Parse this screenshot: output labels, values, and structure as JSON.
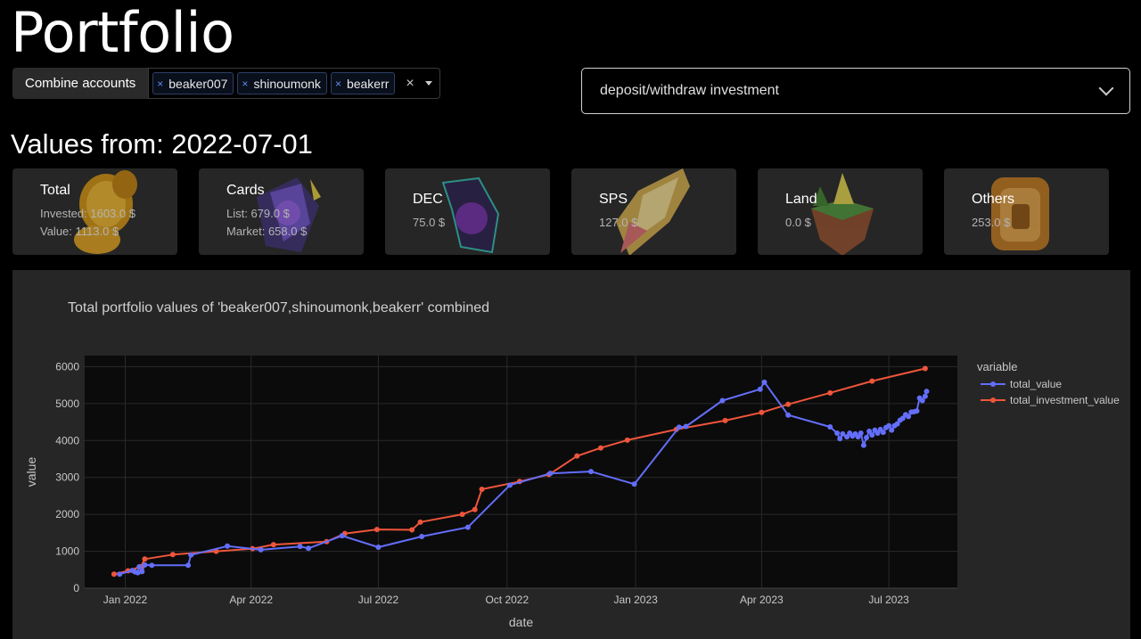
{
  "page": {
    "title": "Portfolio"
  },
  "accounts": {
    "combine_label": "Combine accounts",
    "chips": [
      "beaker007",
      "shinoumonk",
      "beakerr"
    ],
    "chip_remove_glyph": "×",
    "clear_glyph": "×"
  },
  "investment_dropdown": {
    "selected": "deposit/withdraw investment"
  },
  "values_from": "Values from: 2022-07-01",
  "cards": [
    {
      "label": "Total",
      "lines": [
        "Invested: 1603.0 $",
        "Value: 1113.0 $"
      ],
      "art": "gold-coins",
      "art_color": "#d9a11a"
    },
    {
      "label": "Cards",
      "lines": [
        "List: 679.0 $",
        "Market: 658.0 $"
      ],
      "art": "card-fan",
      "art_color": "#6a5acd"
    },
    {
      "label": "DEC",
      "lines": [
        "75.0 $"
      ],
      "art": "purple-crystal",
      "art_color": "#7a2fb0"
    },
    {
      "label": "SPS",
      "lines": [
        "127.0 $"
      ],
      "art": "gold-shard",
      "art_color": "#d8b24a"
    },
    {
      "label": "Land",
      "lines": [
        "0.0 $"
      ],
      "art": "floating-island",
      "art_color": "#4b8f3a"
    },
    {
      "label": "Others",
      "lines": [
        "253.0 $"
      ],
      "art": "treasure-chest",
      "art_color": "#c8822a"
    }
  ],
  "chart_data": {
    "type": "line",
    "title": "Total portfolio values of 'beaker007,shinoumonk,beakerr' combined",
    "xlabel": "date",
    "ylabel": "value",
    "ylim": [
      0,
      6300
    ],
    "yticks": [
      0,
      1000,
      2000,
      3000,
      4000,
      5000,
      6000
    ],
    "xlim": [
      "2021-12-03",
      "2023-08-19"
    ],
    "xticks": [
      {
        "date": "2022-01-01",
        "label": "Jan 2022"
      },
      {
        "date": "2022-04-01",
        "label": "Apr 2022"
      },
      {
        "date": "2022-07-01",
        "label": "Jul 2022"
      },
      {
        "date": "2022-10-01",
        "label": "Oct 2022"
      },
      {
        "date": "2023-01-01",
        "label": "Jan 2023"
      },
      {
        "date": "2023-04-01",
        "label": "Apr 2023"
      },
      {
        "date": "2023-07-01",
        "label": "Jul 2023"
      }
    ],
    "grid": true,
    "legend": {
      "title": "variable",
      "placement": "right"
    },
    "series": [
      {
        "name": "total_value",
        "color": "#636efa",
        "points": [
          [
            "2021-12-28",
            380
          ],
          [
            "2022-01-06",
            480
          ],
          [
            "2022-01-08",
            440
          ],
          [
            "2022-01-10",
            420
          ],
          [
            "2022-01-11",
            580
          ],
          [
            "2022-01-13",
            450
          ],
          [
            "2022-01-15",
            630
          ],
          [
            "2022-01-20",
            620
          ],
          [
            "2022-02-15",
            620
          ],
          [
            "2022-02-17",
            900
          ],
          [
            "2022-03-15",
            1140
          ],
          [
            "2022-04-08",
            1040
          ],
          [
            "2022-05-06",
            1130
          ],
          [
            "2022-05-12",
            1080
          ],
          [
            "2022-06-05",
            1420
          ],
          [
            "2022-07-01",
            1110
          ],
          [
            "2022-08-01",
            1400
          ],
          [
            "2022-09-03",
            1650
          ],
          [
            "2022-10-03",
            2790
          ],
          [
            "2022-11-01",
            3110
          ],
          [
            "2022-11-30",
            3160
          ],
          [
            "2022-12-31",
            2820
          ],
          [
            "2023-02-01",
            4360
          ],
          [
            "2023-02-06",
            4380
          ],
          [
            "2023-03-04",
            5080
          ],
          [
            "2023-03-31",
            5390
          ],
          [
            "2023-04-03",
            5580
          ],
          [
            "2023-04-20",
            4690
          ],
          [
            "2023-05-20",
            4370
          ],
          [
            "2023-05-25",
            4200
          ],
          [
            "2023-05-27",
            4050
          ],
          [
            "2023-05-29",
            4180
          ],
          [
            "2023-06-01",
            4100
          ],
          [
            "2023-06-03",
            4200
          ],
          [
            "2023-06-05",
            4120
          ],
          [
            "2023-06-07",
            4180
          ],
          [
            "2023-06-09",
            4100
          ],
          [
            "2023-06-11",
            4200
          ],
          [
            "2023-06-13",
            3870
          ],
          [
            "2023-06-15",
            4080
          ],
          [
            "2023-06-17",
            4250
          ],
          [
            "2023-06-19",
            4150
          ],
          [
            "2023-06-21",
            4280
          ],
          [
            "2023-06-23",
            4200
          ],
          [
            "2023-06-25",
            4300
          ],
          [
            "2023-06-27",
            4220
          ],
          [
            "2023-06-29",
            4350
          ],
          [
            "2023-07-01",
            4400
          ],
          [
            "2023-07-03",
            4280
          ],
          [
            "2023-07-05",
            4400
          ],
          [
            "2023-07-07",
            4450
          ],
          [
            "2023-07-09",
            4550
          ],
          [
            "2023-07-11",
            4600
          ],
          [
            "2023-07-13",
            4700
          ],
          [
            "2023-07-15",
            4650
          ],
          [
            "2023-07-17",
            4770
          ],
          [
            "2023-07-19",
            4780
          ],
          [
            "2023-07-21",
            4800
          ],
          [
            "2023-07-23",
            5150
          ],
          [
            "2023-07-25",
            5080
          ],
          [
            "2023-07-27",
            5200
          ],
          [
            "2023-07-28",
            5330
          ]
        ]
      },
      {
        "name": "total_investment_value",
        "color": "#ef553b",
        "points": [
          [
            "2021-12-24",
            380
          ],
          [
            "2022-01-03",
            470
          ],
          [
            "2022-01-12",
            580
          ],
          [
            "2022-01-15",
            790
          ],
          [
            "2022-02-04",
            910
          ],
          [
            "2022-03-07",
            1000
          ],
          [
            "2022-04-02",
            1070
          ],
          [
            "2022-04-17",
            1180
          ],
          [
            "2022-05-25",
            1260
          ],
          [
            "2022-06-07",
            1480
          ],
          [
            "2022-06-30",
            1590
          ],
          [
            "2022-07-25",
            1580
          ],
          [
            "2022-07-31",
            1790
          ],
          [
            "2022-08-30",
            2000
          ],
          [
            "2022-09-08",
            2130
          ],
          [
            "2022-09-13",
            2680
          ],
          [
            "2022-10-10",
            2890
          ],
          [
            "2022-10-31",
            3080
          ],
          [
            "2022-11-20",
            3580
          ],
          [
            "2022-12-07",
            3800
          ],
          [
            "2022-12-26",
            4010
          ],
          [
            "2023-01-30",
            4300
          ],
          [
            "2023-03-06",
            4540
          ],
          [
            "2023-04-01",
            4760
          ],
          [
            "2023-04-20",
            4980
          ],
          [
            "2023-05-20",
            5290
          ],
          [
            "2023-06-19",
            5610
          ],
          [
            "2023-07-27",
            5950
          ]
        ]
      }
    ]
  }
}
